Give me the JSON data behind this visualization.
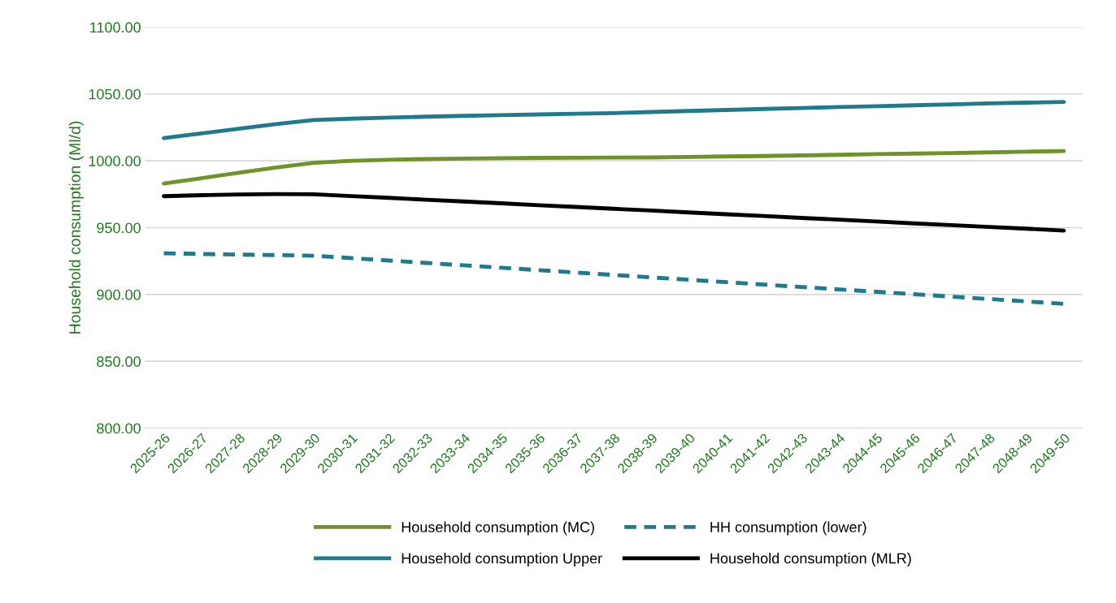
{
  "chart_data": {
    "type": "line",
    "ylabel": "Household consumption (Ml/d)",
    "categories": [
      "2025-26",
      "2026-27",
      "2027-28",
      "2028-29",
      "2029-30",
      "2030-31",
      "2031-32",
      "2032-33",
      "2033-34",
      "2034-35",
      "2035-36",
      "2036-37",
      "2037-38",
      "2038-39",
      "2039-40",
      "2040-41",
      "2041-42",
      "2042-43",
      "2043-44",
      "2044-45",
      "2045-46",
      "2046-47",
      "2047-48",
      "2048-49",
      "2049-50"
    ],
    "series": [
      {
        "name": "Household consumption (MC)",
        "color": "#6f9328",
        "line_style": "solid",
        "values": [
          983,
          987,
          991,
          995,
          998.5,
          1000,
          1000.8,
          1001.3,
          1001.7,
          1002,
          1002.2,
          1002.3,
          1002.4,
          1002.5,
          1002.9,
          1003.3,
          1003.6,
          1004,
          1004.5,
          1005,
          1005.4,
          1005.8,
          1006.3,
          1006.8,
          1007.3
        ]
      },
      {
        "name": "Household consumption Upper",
        "color": "#1f7a8c",
        "line_style": "solid",
        "values": [
          1017,
          1020.5,
          1024,
          1027.5,
          1030.5,
          1031.5,
          1032.3,
          1033,
          1033.6,
          1034.2,
          1034.7,
          1035.2,
          1035.7,
          1036.5,
          1037.3,
          1038,
          1038.8,
          1039.5,
          1040.2,
          1040.8,
          1041.5,
          1042.2,
          1043,
          1043.5,
          1044
        ]
      },
      {
        "name": "HH consumption (lower)",
        "color": "#1f7a8c",
        "line_style": "dashed",
        "values": [
          930.8,
          930.3,
          929.8,
          929.5,
          929,
          927.2,
          925.4,
          923.6,
          921.8,
          920,
          918.2,
          916.4,
          914.6,
          912.8,
          911,
          909.2,
          907.4,
          905.6,
          903.8,
          902,
          900.2,
          898.4,
          896.6,
          894.8,
          893
        ]
      },
      {
        "name": "Household consumption (MLR)",
        "color": "#000000",
        "line_style": "solid",
        "values": [
          973.5,
          974.3,
          974.8,
          975.1,
          975,
          973.6,
          972.3,
          970.9,
          969.6,
          968.2,
          966.8,
          965.5,
          964.1,
          962.8,
          961.4,
          960,
          958.7,
          957.3,
          956,
          954.6,
          953.2,
          951.9,
          950.5,
          949.2,
          947.8
        ]
      }
    ],
    "ylim": [
      800,
      1100
    ],
    "yticks": [
      {
        "value": 800,
        "label": "800.00"
      },
      {
        "value": 850,
        "label": "850.00"
      },
      {
        "value": 900,
        "label": "900.00"
      },
      {
        "value": 950,
        "label": "950.00"
      },
      {
        "value": 1000,
        "label": "1000.00"
      },
      {
        "value": 1050,
        "label": "1050.00"
      },
      {
        "value": 1100,
        "label": "1100.00"
      }
    ],
    "grid": "y",
    "legend": "bottom"
  }
}
